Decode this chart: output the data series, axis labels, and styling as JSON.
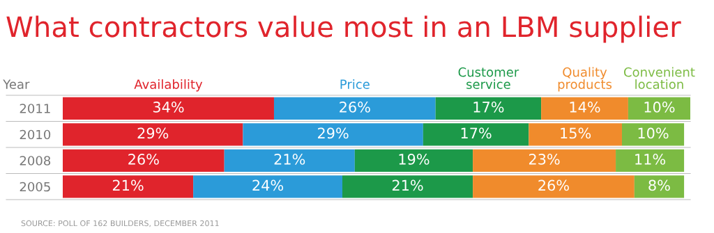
{
  "chart_data": {
    "type": "bar",
    "orientation": "horizontal",
    "stacked": true,
    "title": "What contractors value most in an LBM supplier",
    "ylabel": "Year",
    "categories": [
      "2011",
      "2010",
      "2008",
      "2005"
    ],
    "series": [
      {
        "name": "Availability",
        "color": "#e0242c",
        "values": [
          34,
          29,
          26,
          21
        ],
        "value_labels": [
          "34%",
          "29%",
          "26%",
          "21%"
        ]
      },
      {
        "name": "Price",
        "color": "#2b9bd9",
        "values": [
          26,
          29,
          21,
          24
        ],
        "value_labels": [
          "26%",
          "29%",
          "21%",
          "24%"
        ]
      },
      {
        "name": "Customer\nservice",
        "color": "#1c9949",
        "values": [
          17,
          17,
          19,
          21
        ],
        "value_labels": [
          "17%",
          "17%",
          "19%",
          "21%"
        ]
      },
      {
        "name": "Quality\nproducts",
        "color": "#f08b2c",
        "values": [
          14,
          15,
          23,
          26
        ],
        "value_labels": [
          "14%",
          "15%",
          "23%",
          "26%"
        ]
      },
      {
        "name": "Convenient\nlocation",
        "color": "#7cbb43",
        "values": [
          10,
          10,
          11,
          8
        ],
        "value_labels": [
          "10%",
          "10%",
          "11%",
          "8%"
        ]
      }
    ],
    "tick_labels": "y",
    "grid": false,
    "legend": "top",
    "annotations": [
      "SOURCE: POLL OF 162 BUILDERS, DECEMBER 2011"
    ]
  }
}
